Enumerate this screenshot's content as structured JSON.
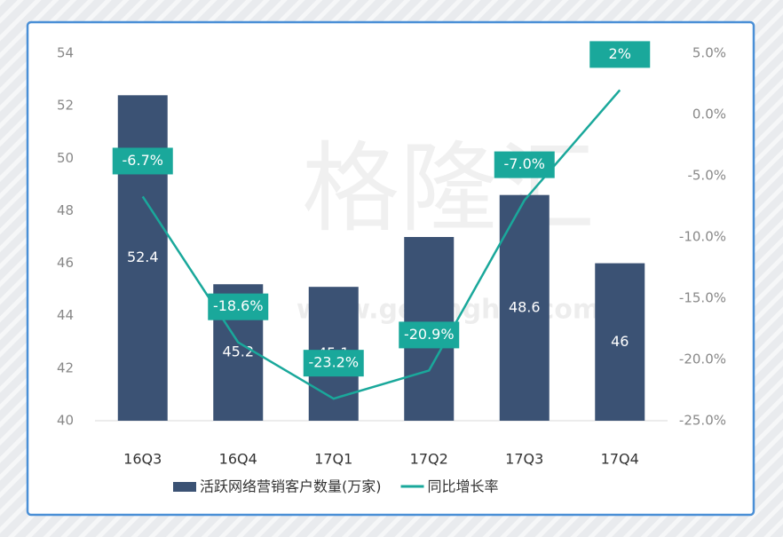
{
  "chart_data": {
    "type": "bar",
    "watermark": [
      "格隆汇",
      "www.gelonghui.com"
    ],
    "categories": [
      "16Q3",
      "16Q4",
      "17Q1",
      "17Q2",
      "17Q3",
      "17Q4"
    ],
    "series": [
      {
        "name": "活跃网络营销客户数量(万家)",
        "type": "bar",
        "color": "#3b5274",
        "values": [
          52.4,
          45.2,
          45.1,
          47,
          48.6,
          46
        ]
      },
      {
        "name": "同比增长率",
        "type": "line",
        "axis": "y2",
        "color": "#1aa89b",
        "values": [
          -6.7,
          -18.6,
          -23.2,
          -20.9,
          -7.0,
          2
        ],
        "value_labels": [
          "-6.7%",
          "-18.6%",
          "-23.2%",
          "-20.9%",
          "-7.0%",
          "2%"
        ]
      }
    ],
    "ylim": [
      40,
      54
    ],
    "yticks": [
      40,
      42,
      44,
      46,
      48,
      50,
      52,
      54
    ],
    "y2lim": [
      -25,
      5
    ],
    "y2ticks": [
      {
        "value": -25,
        "label": "-25.0%"
      },
      {
        "value": -20,
        "label": "-20.0%"
      },
      {
        "value": -15,
        "label": "-15.0%"
      },
      {
        "value": -10,
        "label": "-10.0%"
      },
      {
        "value": -5,
        "label": "-5.0%"
      },
      {
        "value": 0,
        "label": "0.0%"
      },
      {
        "value": 5,
        "label": "5.0%"
      }
    ],
    "legend": "bottom"
  }
}
